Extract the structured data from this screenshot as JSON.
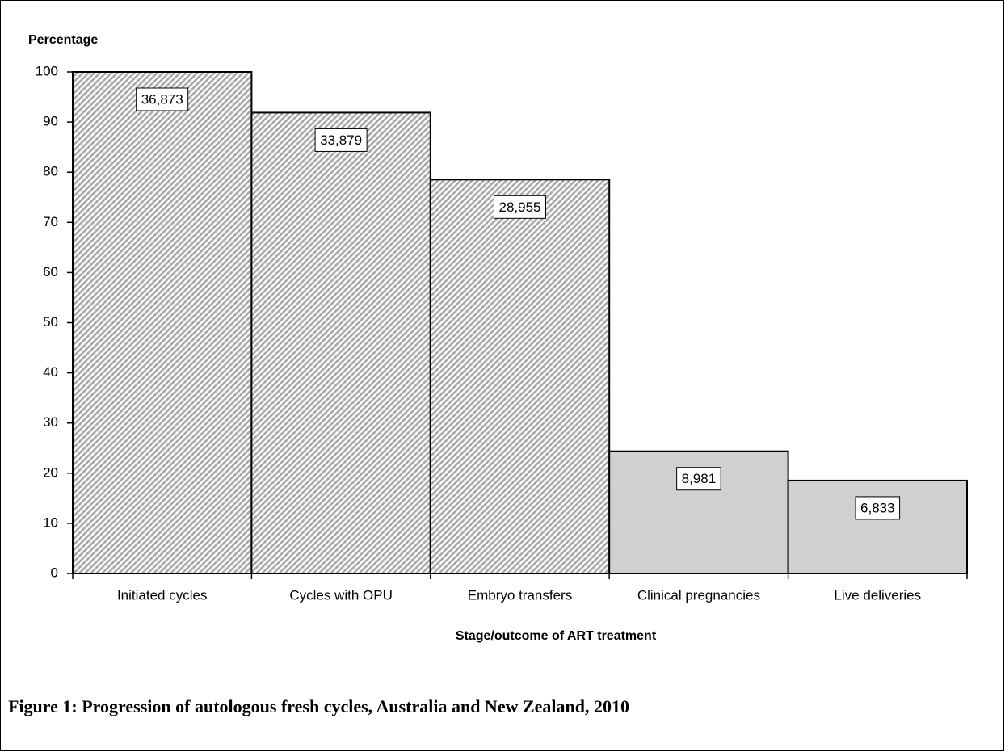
{
  "chart_data": {
    "type": "bar",
    "ylabel": "Percentage",
    "xlabel": "Stage/outcome of ART treatment",
    "caption": "Figure 1: Progression of autologous fresh cycles, Australia and New Zealand, 2010",
    "categories": [
      "Initiated cycles",
      "Cycles with OPU",
      "Embryo transfers",
      "Clinical pregnancies",
      "Live deliveries"
    ],
    "values": [
      100,
      91.88,
      78.53,
      24.36,
      18.53
    ],
    "annotations": [
      "36,873",
      "33,879",
      "28,955",
      "8,981",
      "6,833"
    ],
    "colors": [
      "#d9d9d9",
      "#d9d9d9",
      "#d9d9d9",
      "#d0d0d0",
      "#d0d0d0"
    ],
    "hatch": [
      true,
      true,
      true,
      false,
      false
    ],
    "ylim": [
      0,
      100
    ],
    "yticks": [
      0,
      10,
      20,
      30,
      40,
      50,
      60,
      70,
      80,
      90,
      100
    ]
  }
}
